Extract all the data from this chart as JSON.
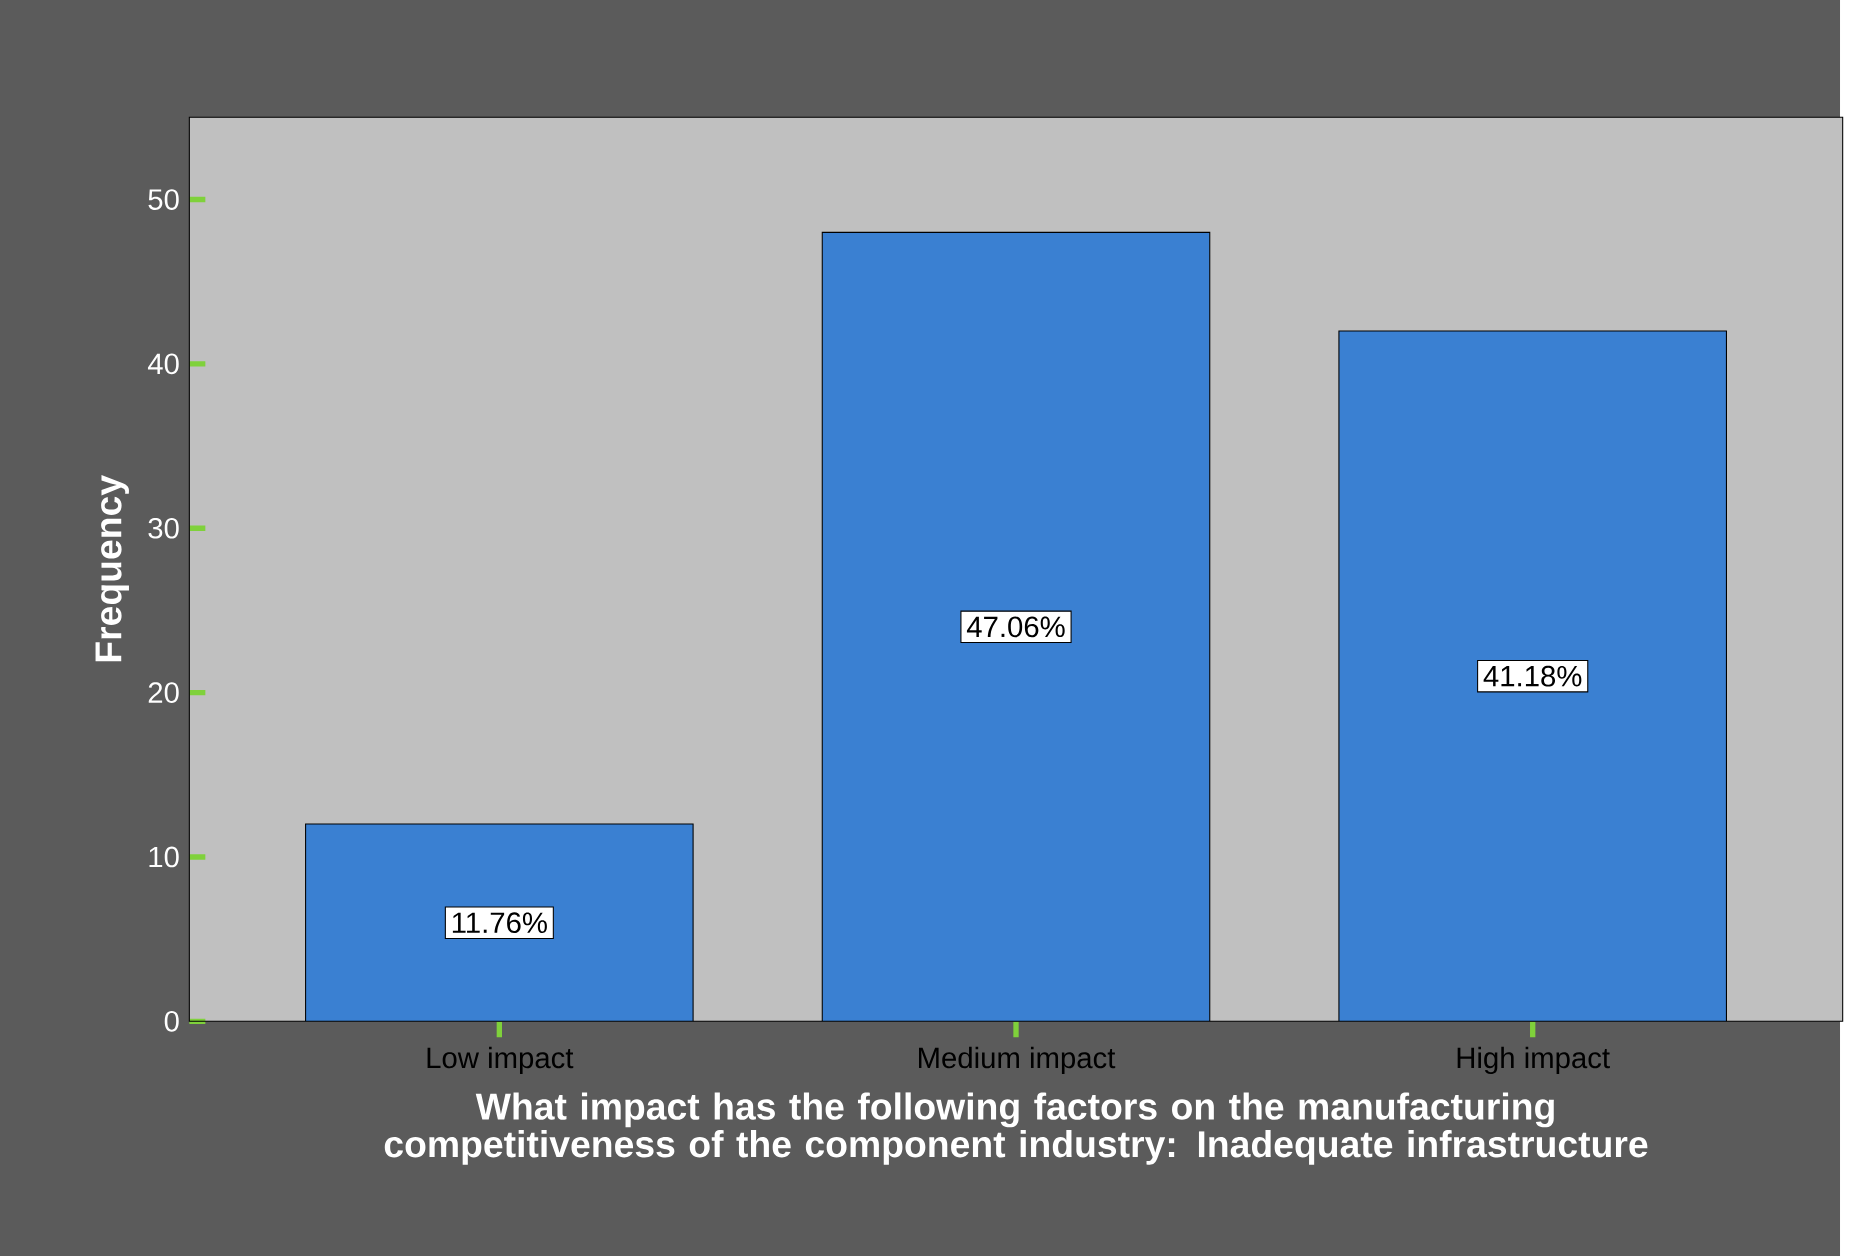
{
  "chart_data": {
    "type": "bar",
    "xlabel": "What impact has the following factors on the manufacturing competitiveness of the component industry: Inadequate infrastructure",
    "ylabel": "Frequency",
    "categories": [
      "Low impact",
      "Medium impact",
      "High impact"
    ],
    "values": [
      12,
      48,
      42
    ],
    "annotations": [
      "11.76%",
      "47.06%",
      "41.18%"
    ],
    "color": "#3a80d2",
    "ylim": [
      0,
      55
    ],
    "yticks": [
      0,
      10,
      20,
      30,
      40,
      50
    ],
    "grid": false
  }
}
